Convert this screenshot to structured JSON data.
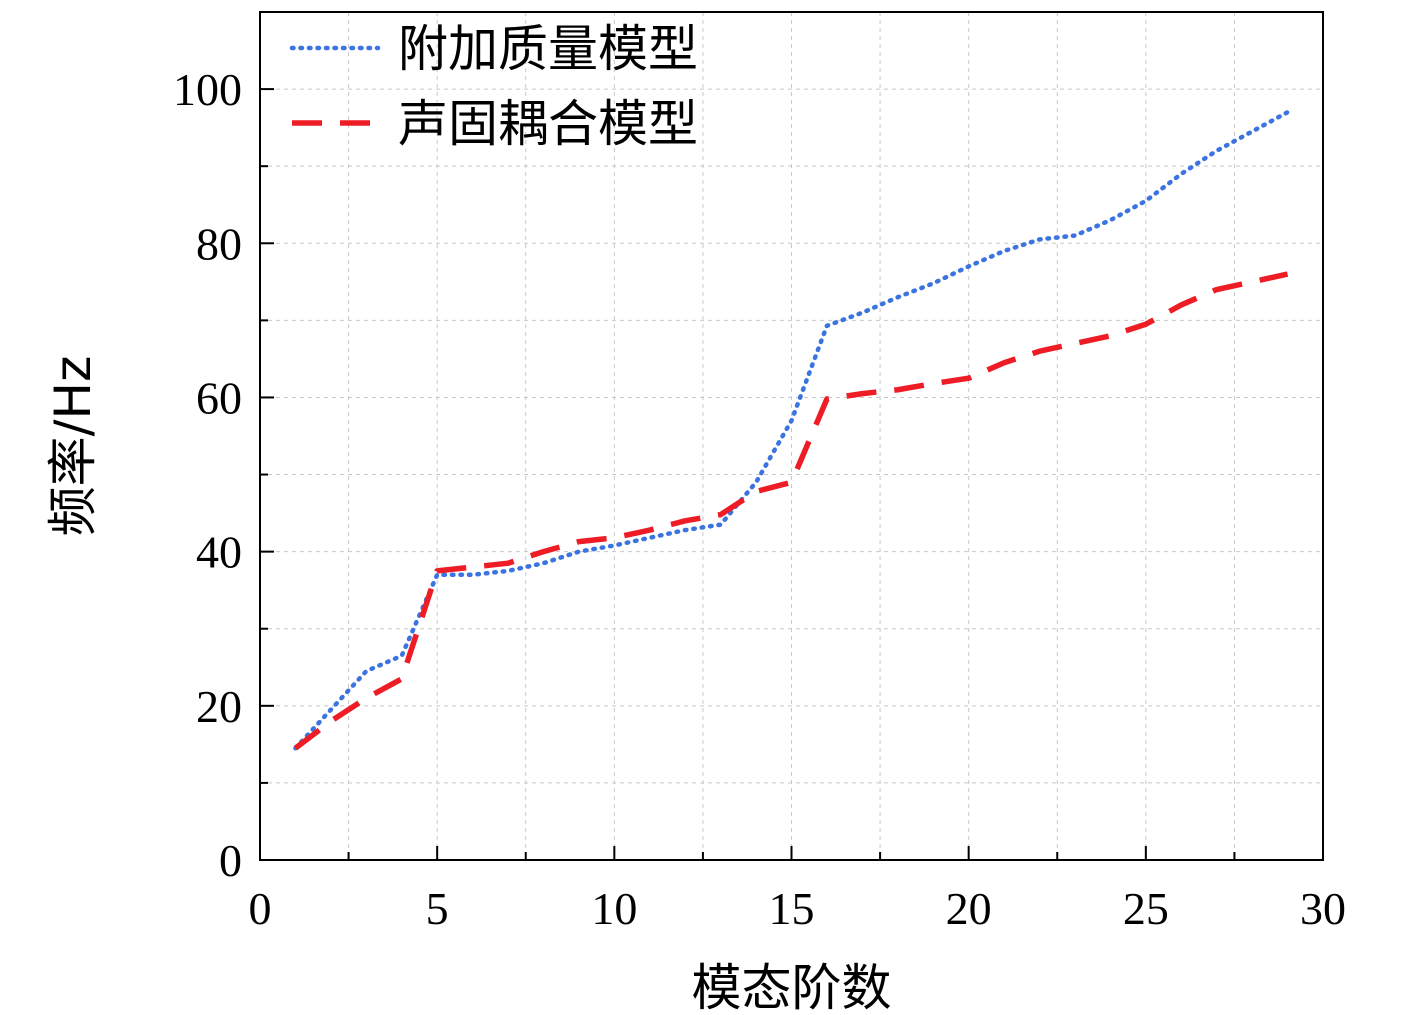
{
  "chart_data": {
    "type": "line",
    "xlabel": "模态阶数",
    "ylabel": "频率/Hz",
    "xlim": [
      0,
      30
    ],
    "ylim": [
      0,
      110
    ],
    "xticks": [
      0,
      5,
      10,
      15,
      20,
      25,
      30
    ],
    "yticks": [
      0,
      20,
      40,
      60,
      80,
      100
    ],
    "grid": true,
    "legend_position": "top-left",
    "series": [
      {
        "name": "附加质量模型",
        "color": "#3b73e0",
        "line_style": "dotted",
        "x": [
          1,
          2,
          3,
          4,
          5,
          6,
          7,
          8,
          9,
          10,
          11,
          12,
          13,
          14,
          15,
          16,
          17,
          18,
          19,
          20,
          21,
          22,
          23,
          24,
          25,
          26,
          27,
          28,
          29
        ],
        "y": [
          14.5,
          19.5,
          24.5,
          26.5,
          37,
          37,
          37.5,
          38.5,
          40,
          40.8,
          41.8,
          42.8,
          43.5,
          49,
          57,
          69.3,
          71,
          73,
          74.8,
          77,
          79,
          80.5,
          81,
          83,
          85.5,
          89,
          92,
          94.5,
          97
        ]
      },
      {
        "name": "声固耦合模型",
        "color": "#ee1c25",
        "line_style": "dashed",
        "x": [
          1,
          2,
          3,
          4,
          5,
          6,
          7,
          8,
          9,
          10,
          11,
          12,
          13,
          14,
          15,
          16,
          17,
          18,
          19,
          20,
          21,
          22,
          23,
          24,
          25,
          26,
          27,
          28,
          29
        ],
        "y": [
          14.5,
          18,
          21,
          23.5,
          37.5,
          38,
          38.5,
          40,
          41.3,
          41.8,
          42.8,
          44,
          44.8,
          47.8,
          49,
          59.8,
          60.5,
          61,
          61.8,
          62.5,
          64.5,
          66,
          67,
          68,
          69.5,
          72,
          74,
          75,
          76
        ]
      }
    ]
  }
}
